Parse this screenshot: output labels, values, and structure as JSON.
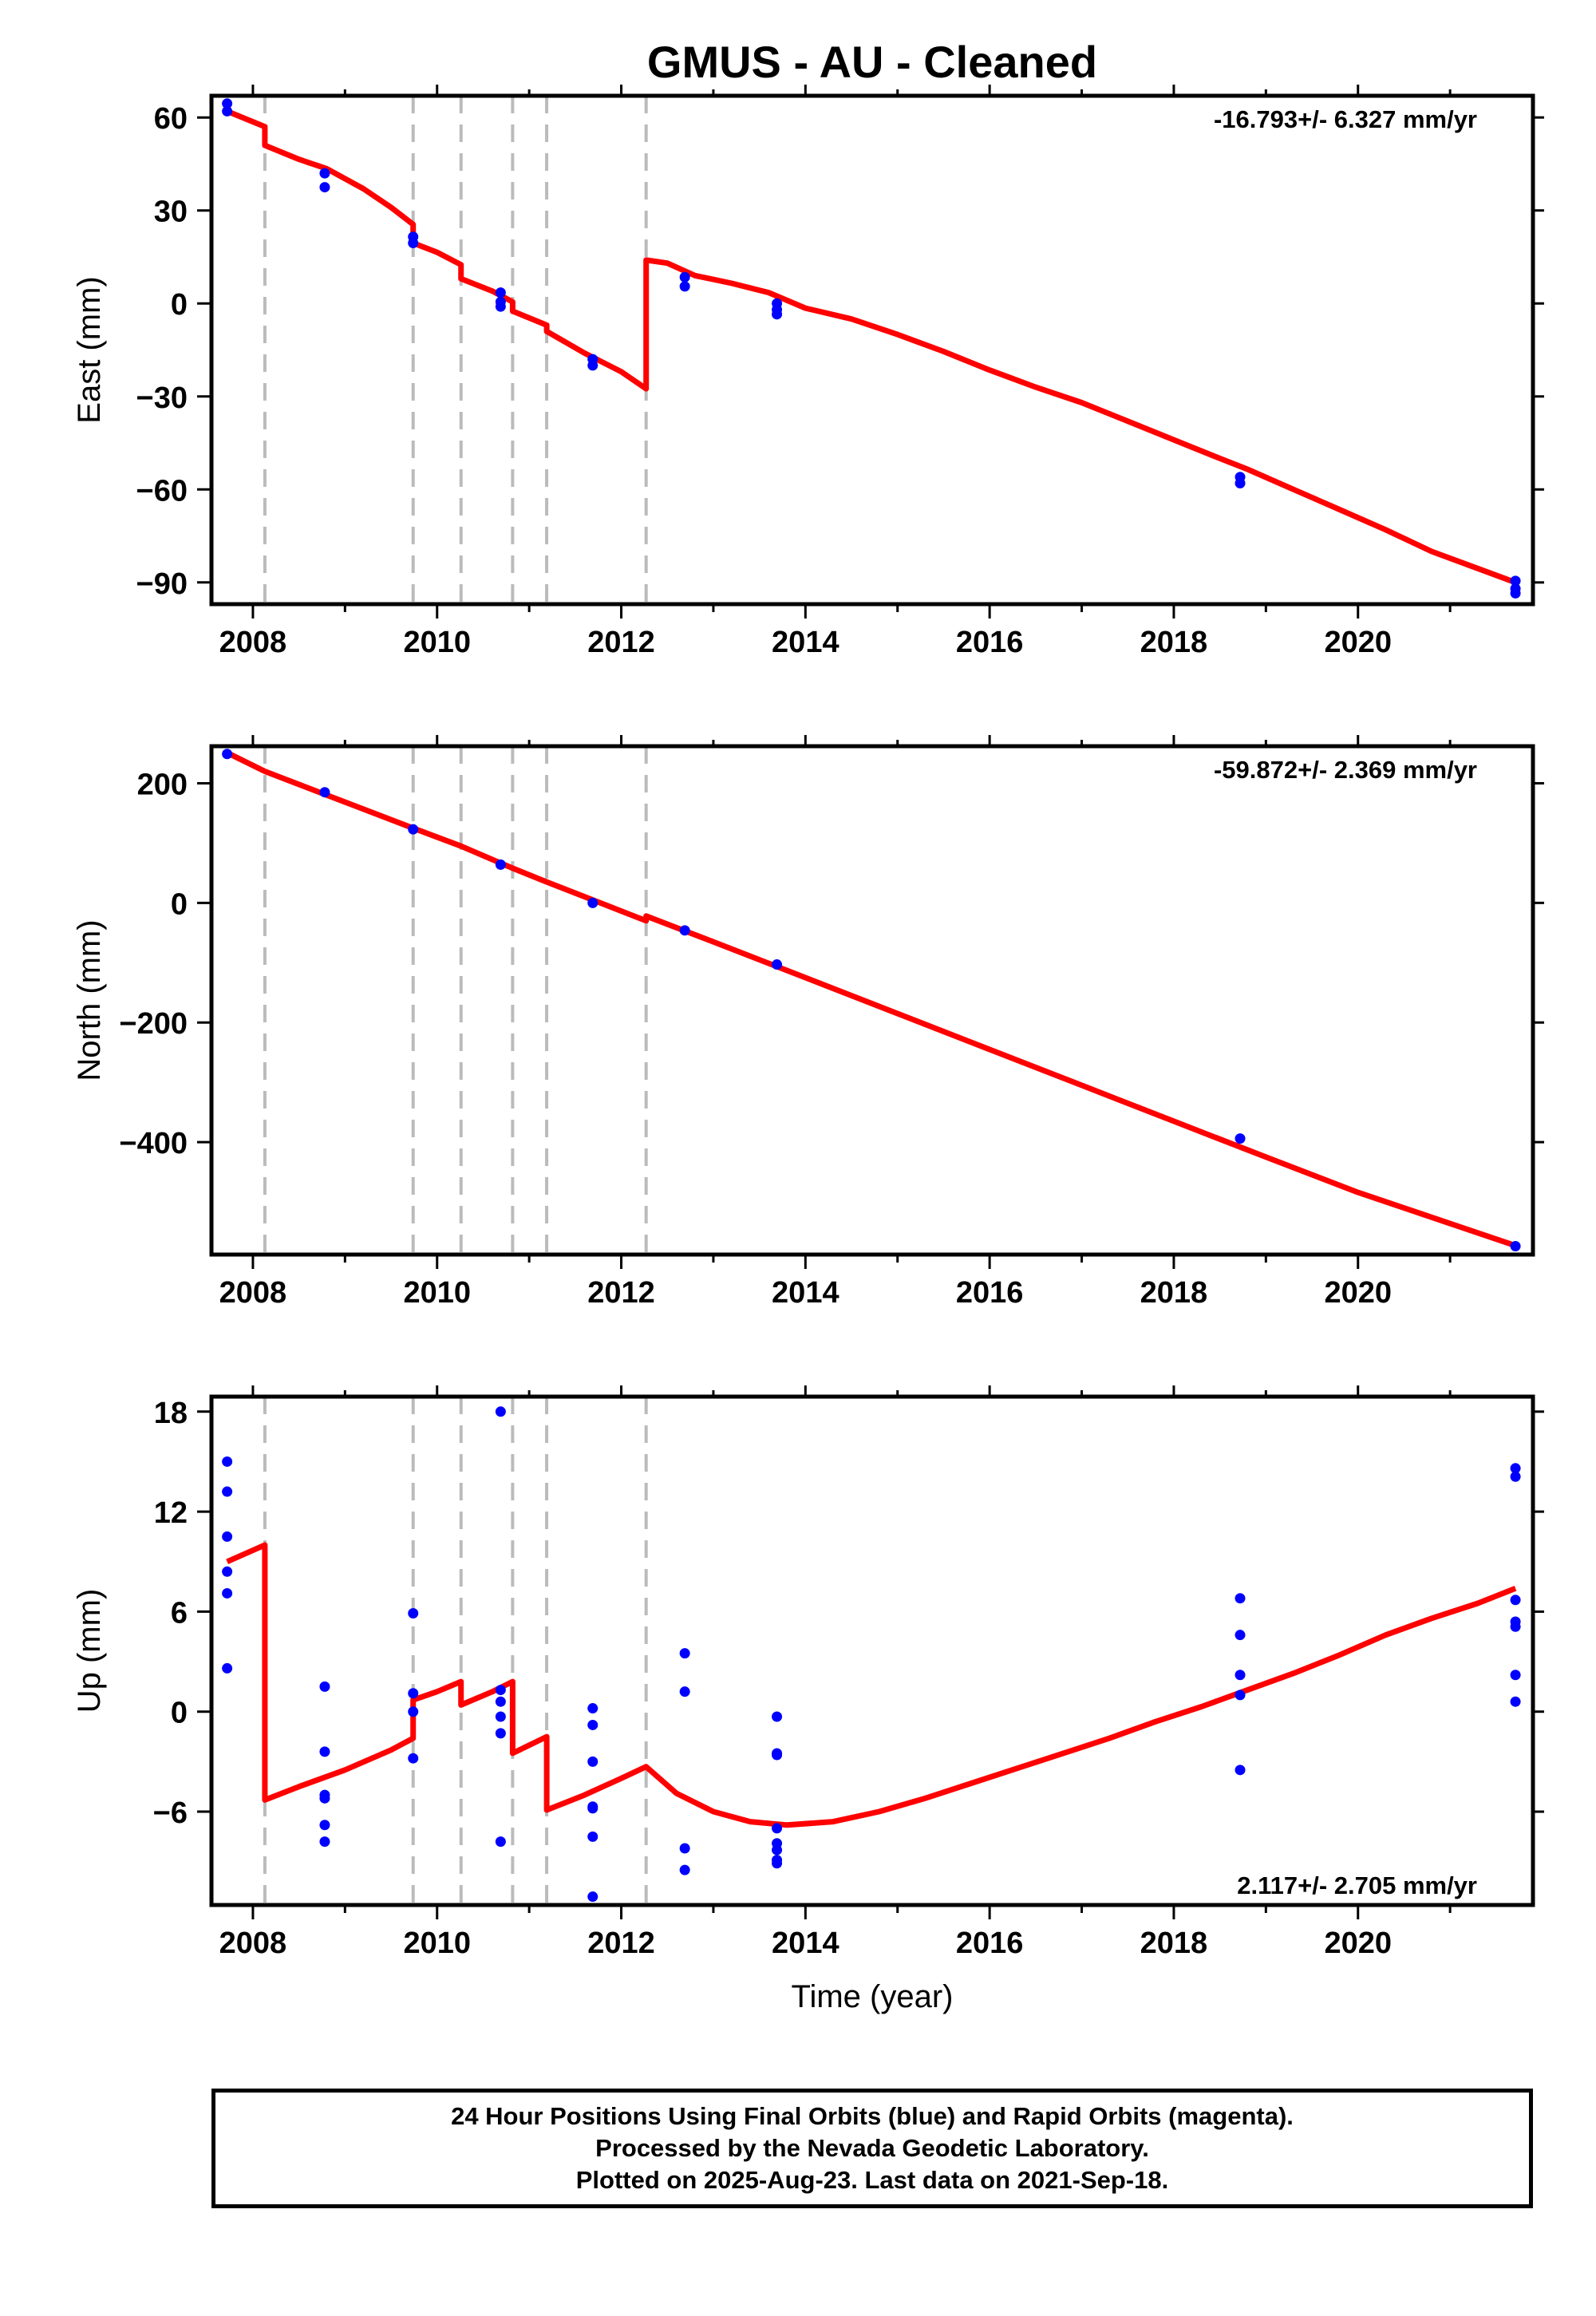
{
  "title": "GMUS  - AU - Cleaned",
  "xlabel": "Time (year)",
  "colors": {
    "fit": "#ff0000",
    "points": "#0000ff",
    "breaks": "#bbbbbb",
    "axes": "#000000"
  },
  "footer": {
    "line1": "24 Hour Positions Using Final Orbits (blue) and Rapid Orbits (magenta).",
    "line2": "Processed by the Nevada Geodetic Laboratory.",
    "line3": "Plotted on 2025-Aug-23. Last data on 2021-Sep-18."
  },
  "chart_data": [
    {
      "type": "scatter",
      "panel": "east",
      "ylabel": "East (mm)",
      "rate": "-16.793+/- 6.327 mm/yr",
      "rate_position": "top-right",
      "xlim": [
        2007.55,
        2021.9
      ],
      "ylim": [
        -97,
        67
      ],
      "xticks": [
        2008,
        2010,
        2012,
        2014,
        2016,
        2018,
        2020
      ],
      "yticks": [
        60,
        30,
        0,
        -30,
        -60,
        -90
      ],
      "ytick_labels": [
        "60",
        "30",
        "0",
        "−30",
        "−60",
        "−90"
      ],
      "breaks": [
        2008.13,
        2009.74,
        2010.26,
        2010.82,
        2011.19,
        2012.27
      ],
      "points": [
        [
          2007.72,
          64.5
        ],
        [
          2007.72,
          62.0
        ],
        [
          2008.78,
          42.0
        ],
        [
          2008.78,
          37.5
        ],
        [
          2009.74,
          21.5
        ],
        [
          2009.74,
          19.5
        ],
        [
          2010.69,
          3.5
        ],
        [
          2010.69,
          0.5
        ],
        [
          2010.69,
          -1.0
        ],
        [
          2011.69,
          -18.0
        ],
        [
          2011.69,
          -20.0
        ],
        [
          2012.69,
          8.5
        ],
        [
          2012.69,
          5.5
        ],
        [
          2013.69,
          0.0
        ],
        [
          2013.69,
          -2.0
        ],
        [
          2013.69,
          -3.5
        ],
        [
          2018.72,
          -56.0
        ],
        [
          2018.72,
          -58.0
        ],
        [
          2021.71,
          -89.5
        ],
        [
          2021.71,
          -92.0
        ],
        [
          2021.71,
          -93.5
        ]
      ],
      "fit": [
        [
          2007.72,
          62.0
        ],
        [
          2008.13,
          57.0
        ],
        [
          2008.13,
          51.0
        ],
        [
          2008.5,
          46.5
        ],
        [
          2008.8,
          43.5
        ],
        [
          2009.2,
          37.0
        ],
        [
          2009.5,
          31.0
        ],
        [
          2009.74,
          25.5
        ],
        [
          2009.74,
          19.5
        ],
        [
          2010.0,
          16.5
        ],
        [
          2010.26,
          12.5
        ],
        [
          2010.26,
          8.0
        ],
        [
          2010.6,
          4.0
        ],
        [
          2010.82,
          0.5
        ],
        [
          2010.82,
          -2.5
        ],
        [
          2011.19,
          -7.0
        ],
        [
          2011.19,
          -9.0
        ],
        [
          2011.6,
          -16.0
        ],
        [
          2012.0,
          -22.0
        ],
        [
          2012.27,
          -27.5
        ],
        [
          2012.27,
          14.0
        ],
        [
          2012.5,
          13.0
        ],
        [
          2012.8,
          9.0
        ],
        [
          2013.2,
          6.5
        ],
        [
          2013.6,
          3.5
        ],
        [
          2014.0,
          -1.5
        ],
        [
          2014.5,
          -5.0
        ],
        [
          2015.0,
          -10.0
        ],
        [
          2015.5,
          -15.5
        ],
        [
          2016.0,
          -21.5
        ],
        [
          2016.5,
          -27.0
        ],
        [
          2017.0,
          -32.0
        ],
        [
          2017.5,
          -38.0
        ],
        [
          2018.0,
          -44.0
        ],
        [
          2018.5,
          -50.0
        ],
        [
          2018.8,
          -53.5
        ],
        [
          2019.3,
          -60.0
        ],
        [
          2019.8,
          -66.5
        ],
        [
          2020.3,
          -73.0
        ],
        [
          2020.8,
          -80.0
        ],
        [
          2021.3,
          -85.5
        ],
        [
          2021.71,
          -90.0
        ]
      ]
    },
    {
      "type": "scatter",
      "panel": "north",
      "ylabel": "North (mm)",
      "rate": "-59.872+/- 2.369 mm/yr",
      "rate_position": "top-right",
      "xlim": [
        2007.55,
        2021.9
      ],
      "ylim": [
        -588,
        262
      ],
      "xticks": [
        2008,
        2010,
        2012,
        2014,
        2016,
        2018,
        2020
      ],
      "yticks": [
        200,
        0,
        -200,
        -400
      ],
      "ytick_labels": [
        "200",
        "0",
        "−200",
        "−400"
      ],
      "breaks": [
        2008.13,
        2009.74,
        2010.26,
        2010.82,
        2011.19,
        2012.27
      ],
      "points": [
        [
          2007.72,
          249
        ],
        [
          2008.78,
          185
        ],
        [
          2009.74,
          123
        ],
        [
          2010.69,
          64
        ],
        [
          2011.69,
          0
        ],
        [
          2012.69,
          -46
        ],
        [
          2013.69,
          -103
        ],
        [
          2018.72,
          -394
        ],
        [
          2021.71,
          -574
        ]
      ],
      "fit": [
        [
          2007.72,
          251
        ],
        [
          2008.13,
          220
        ],
        [
          2009.74,
          125
        ],
        [
          2010.26,
          95
        ],
        [
          2010.82,
          58
        ],
        [
          2011.19,
          35
        ],
        [
          2012.27,
          -30
        ],
        [
          2012.27,
          -22
        ],
        [
          2013.0,
          -65
        ],
        [
          2014.0,
          -125
        ],
        [
          2015.0,
          -185
        ],
        [
          2016.0,
          -245
        ],
        [
          2017.0,
          -305
        ],
        [
          2018.0,
          -365
        ],
        [
          2019.0,
          -425
        ],
        [
          2020.0,
          -484
        ],
        [
          2021.71,
          -573
        ]
      ]
    },
    {
      "type": "scatter",
      "panel": "up",
      "ylabel": "Up (mm)",
      "rate": "2.117+/- 2.705 mm/yr",
      "rate_position": "bottom-right",
      "xlim": [
        2007.55,
        2021.9
      ],
      "ylim": [
        -11.6,
        18.9
      ],
      "xticks": [
        2008,
        2010,
        2012,
        2014,
        2016,
        2018,
        2020
      ],
      "xtick_labels": [
        "2008",
        "2010",
        "2012",
        "2014",
        "2016",
        "2018",
        "2020"
      ],
      "yticks": [
        18,
        12,
        6,
        0,
        -6
      ],
      "ytick_labels": [
        "18",
        "12",
        "6",
        "0",
        "−6"
      ],
      "breaks": [
        2008.13,
        2009.74,
        2010.26,
        2010.82,
        2011.19,
        2012.27
      ],
      "points": [
        [
          2007.72,
          15.0
        ],
        [
          2007.72,
          13.2
        ],
        [
          2007.72,
          10.5
        ],
        [
          2007.72,
          8.4
        ],
        [
          2007.72,
          7.1
        ],
        [
          2007.72,
          2.6
        ],
        [
          2008.78,
          1.5
        ],
        [
          2008.78,
          -2.4
        ],
        [
          2008.78,
          -5.0
        ],
        [
          2008.78,
          -5.2
        ],
        [
          2008.78,
          -6.8
        ],
        [
          2008.78,
          -7.8
        ],
        [
          2009.74,
          5.9
        ],
        [
          2009.74,
          1.1
        ],
        [
          2009.74,
          0.0
        ],
        [
          2009.74,
          -2.8
        ],
        [
          2010.69,
          18.0
        ],
        [
          2010.69,
          1.3
        ],
        [
          2010.69,
          0.6
        ],
        [
          2010.69,
          -0.3
        ],
        [
          2010.69,
          -1.3
        ],
        [
          2010.69,
          -7.8
        ],
        [
          2011.69,
          0.2
        ],
        [
          2011.69,
          -0.8
        ],
        [
          2011.69,
          -3.0
        ],
        [
          2011.69,
          -5.7
        ],
        [
          2011.69,
          -5.8
        ],
        [
          2011.69,
          -7.5
        ],
        [
          2011.69,
          -11.1
        ],
        [
          2012.69,
          3.5
        ],
        [
          2012.69,
          1.2
        ],
        [
          2012.69,
          -8.2
        ],
        [
          2012.69,
          -9.5
        ],
        [
          2013.69,
          -0.3
        ],
        [
          2013.69,
          -2.5
        ],
        [
          2013.69,
          -2.6
        ],
        [
          2013.69,
          -7.0
        ],
        [
          2013.69,
          -7.9
        ],
        [
          2013.69,
          -8.3
        ],
        [
          2013.69,
          -8.9
        ],
        [
          2013.69,
          -9.1
        ],
        [
          2018.72,
          6.8
        ],
        [
          2018.72,
          4.6
        ],
        [
          2018.72,
          2.2
        ],
        [
          2018.72,
          1.0
        ],
        [
          2018.72,
          -3.5
        ],
        [
          2021.71,
          14.6
        ],
        [
          2021.71,
          14.1
        ],
        [
          2021.71,
          6.7
        ],
        [
          2021.71,
          5.4
        ],
        [
          2021.71,
          5.1
        ],
        [
          2021.71,
          2.2
        ],
        [
          2021.71,
          0.6
        ]
      ],
      "fit": [
        [
          2007.72,
          9.0
        ],
        [
          2008.13,
          10.0
        ],
        [
          2008.13,
          -5.3
        ],
        [
          2008.5,
          -4.5
        ],
        [
          2009.0,
          -3.5
        ],
        [
          2009.5,
          -2.3
        ],
        [
          2009.74,
          -1.6
        ],
        [
          2009.74,
          0.7
        ],
        [
          2010.0,
          1.2
        ],
        [
          2010.26,
          1.8
        ],
        [
          2010.26,
          0.4
        ],
        [
          2010.6,
          1.2
        ],
        [
          2010.82,
          1.8
        ],
        [
          2010.82,
          -2.5
        ],
        [
          2011.19,
          -1.5
        ],
        [
          2011.19,
          -5.9
        ],
        [
          2011.6,
          -5.0
        ],
        [
          2012.0,
          -4.0
        ],
        [
          2012.27,
          -3.3
        ],
        [
          2012.6,
          -4.9
        ],
        [
          2013.0,
          -6.0
        ],
        [
          2013.4,
          -6.6
        ],
        [
          2013.8,
          -6.8
        ],
        [
          2014.3,
          -6.6
        ],
        [
          2014.8,
          -6.0
        ],
        [
          2015.3,
          -5.2
        ],
        [
          2015.8,
          -4.3
        ],
        [
          2016.3,
          -3.4
        ],
        [
          2016.8,
          -2.5
        ],
        [
          2017.3,
          -1.6
        ],
        [
          2017.8,
          -0.6
        ],
        [
          2018.3,
          0.3
        ],
        [
          2018.8,
          1.3
        ],
        [
          2019.3,
          2.3
        ],
        [
          2019.8,
          3.4
        ],
        [
          2020.3,
          4.6
        ],
        [
          2020.8,
          5.6
        ],
        [
          2021.3,
          6.5
        ],
        [
          2021.71,
          7.4
        ]
      ]
    }
  ]
}
